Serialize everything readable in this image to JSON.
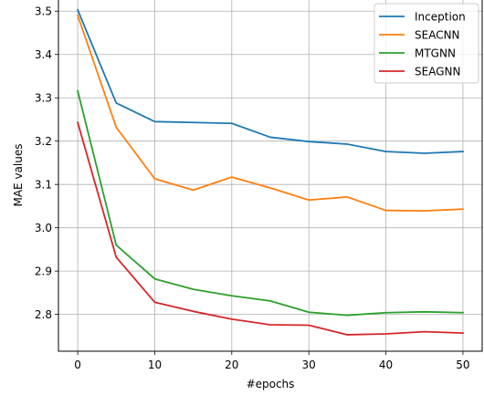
{
  "chart_data": {
    "type": "line",
    "title": "",
    "xlabel": "#epochs",
    "ylabel": "MAE values",
    "x": [
      0,
      5,
      10,
      15,
      20,
      25,
      30,
      35,
      40,
      45,
      50
    ],
    "xlim": [
      -2.5,
      52.5
    ],
    "ylim": [
      2.715,
      3.53
    ],
    "xticks": [
      0,
      10,
      20,
      30,
      40,
      50
    ],
    "yticks": [
      2.8,
      2.9,
      3.0,
      3.1,
      3.2,
      3.3,
      3.4,
      3.5
    ],
    "grid": true,
    "legend_position": "top-right",
    "series": [
      {
        "name": "Inception",
        "color": "#1f77b4",
        "values": [
          3.503,
          3.288,
          3.245,
          3.243,
          3.241,
          3.209,
          3.199,
          3.193,
          3.176,
          3.172,
          3.176
        ]
      },
      {
        "name": "SEACNN",
        "color": "#ff7f0e",
        "values": [
          3.49,
          3.232,
          3.113,
          3.087,
          3.117,
          3.092,
          3.064,
          3.071,
          3.04,
          3.039,
          3.043
        ]
      },
      {
        "name": "MTGNN",
        "color": "#2ca02c",
        "values": [
          3.316,
          2.96,
          2.882,
          2.858,
          2.843,
          2.831,
          2.805,
          2.798,
          2.804,
          2.806,
          2.804
        ]
      },
      {
        "name": "SEAGNN",
        "color": "#d62728",
        "values": [
          3.243,
          2.932,
          2.828,
          2.807,
          2.789,
          2.776,
          2.775,
          2.753,
          2.755,
          2.76,
          2.757
        ]
      }
    ]
  }
}
